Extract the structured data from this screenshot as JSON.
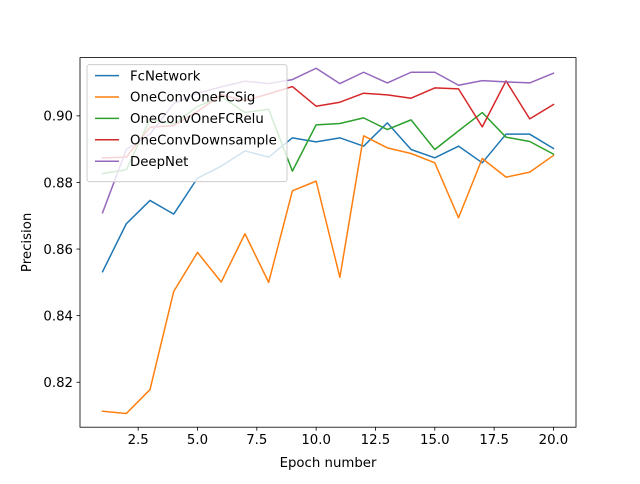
{
  "chart_data": {
    "type": "line",
    "title": "",
    "xlabel": "Epoch number",
    "ylabel": "Precision",
    "xlim": [
      0.05,
      20.95
    ],
    "ylim": [
      0.8065,
      0.9175
    ],
    "xticks": [
      2.5,
      5.0,
      7.5,
      10.0,
      12.5,
      15.0,
      17.5,
      20.0
    ],
    "xtick_labels": [
      "2.5",
      "5.0",
      "7.5",
      "10.0",
      "12.5",
      "15.0",
      "17.5",
      "20.0"
    ],
    "yticks": [
      0.82,
      0.84,
      0.86,
      0.88,
      0.9
    ],
    "ytick_labels": [
      "0.82",
      "0.84",
      "0.86",
      "0.88",
      "0.90"
    ],
    "grid": false,
    "legend_position": "top-left",
    "x": [
      1,
      2,
      3,
      4,
      5,
      6,
      7,
      8,
      9,
      10,
      11,
      12,
      13,
      14,
      15,
      16,
      17,
      18,
      19,
      20
    ],
    "series": [
      {
        "name": "FcNetwork",
        "color": "#1f77b4",
        "values": [
          0.8532,
          0.8676,
          0.8746,
          0.8705,
          0.8813,
          0.8849,
          0.8895,
          0.8876,
          0.8934,
          0.8922,
          0.8934,
          0.8909,
          0.8979,
          0.8899,
          0.8874,
          0.8909,
          0.8859,
          0.8945,
          0.8945,
          0.8902
        ]
      },
      {
        "name": "OneConvOneFCSig",
        "color": "#ff7f0e",
        "values": [
          0.8113,
          0.8106,
          0.8178,
          0.8473,
          0.859,
          0.8501,
          0.8646,
          0.85,
          0.8775,
          0.8804,
          0.8515,
          0.894,
          0.8904,
          0.8887,
          0.8859,
          0.8694,
          0.8872,
          0.8816,
          0.8831,
          0.8881
        ]
      },
      {
        "name": "OneConvOneFCRelu",
        "color": "#2ca02c",
        "values": [
          0.8827,
          0.8838,
          0.899,
          0.8975,
          0.9028,
          0.9058,
          0.901,
          0.902,
          0.8834,
          0.8973,
          0.8977,
          0.8994,
          0.8959,
          0.8988,
          0.8899,
          0.8955,
          0.901,
          0.8936,
          0.8923,
          0.8885
        ]
      },
      {
        "name": "OneConvDownsample",
        "color": "#d62728",
        "values": [
          0.8874,
          0.8876,
          0.8966,
          0.8971,
          0.9013,
          0.9063,
          0.9046,
          0.9066,
          0.9088,
          0.9029,
          0.9041,
          0.9068,
          0.9063,
          0.9053,
          0.9084,
          0.9081,
          0.8967,
          0.9105,
          0.8991,
          0.9034
        ]
      },
      {
        "name": "DeepNet",
        "color": "#9467bd",
        "values": [
          0.8709,
          0.8899,
          0.8945,
          0.9037,
          0.9068,
          0.9087,
          0.9104,
          0.9097,
          0.9109,
          0.9143,
          0.9097,
          0.9131,
          0.9099,
          0.9131,
          0.9131,
          0.9092,
          0.9106,
          0.9102,
          0.9099,
          0.9128
        ]
      }
    ]
  }
}
